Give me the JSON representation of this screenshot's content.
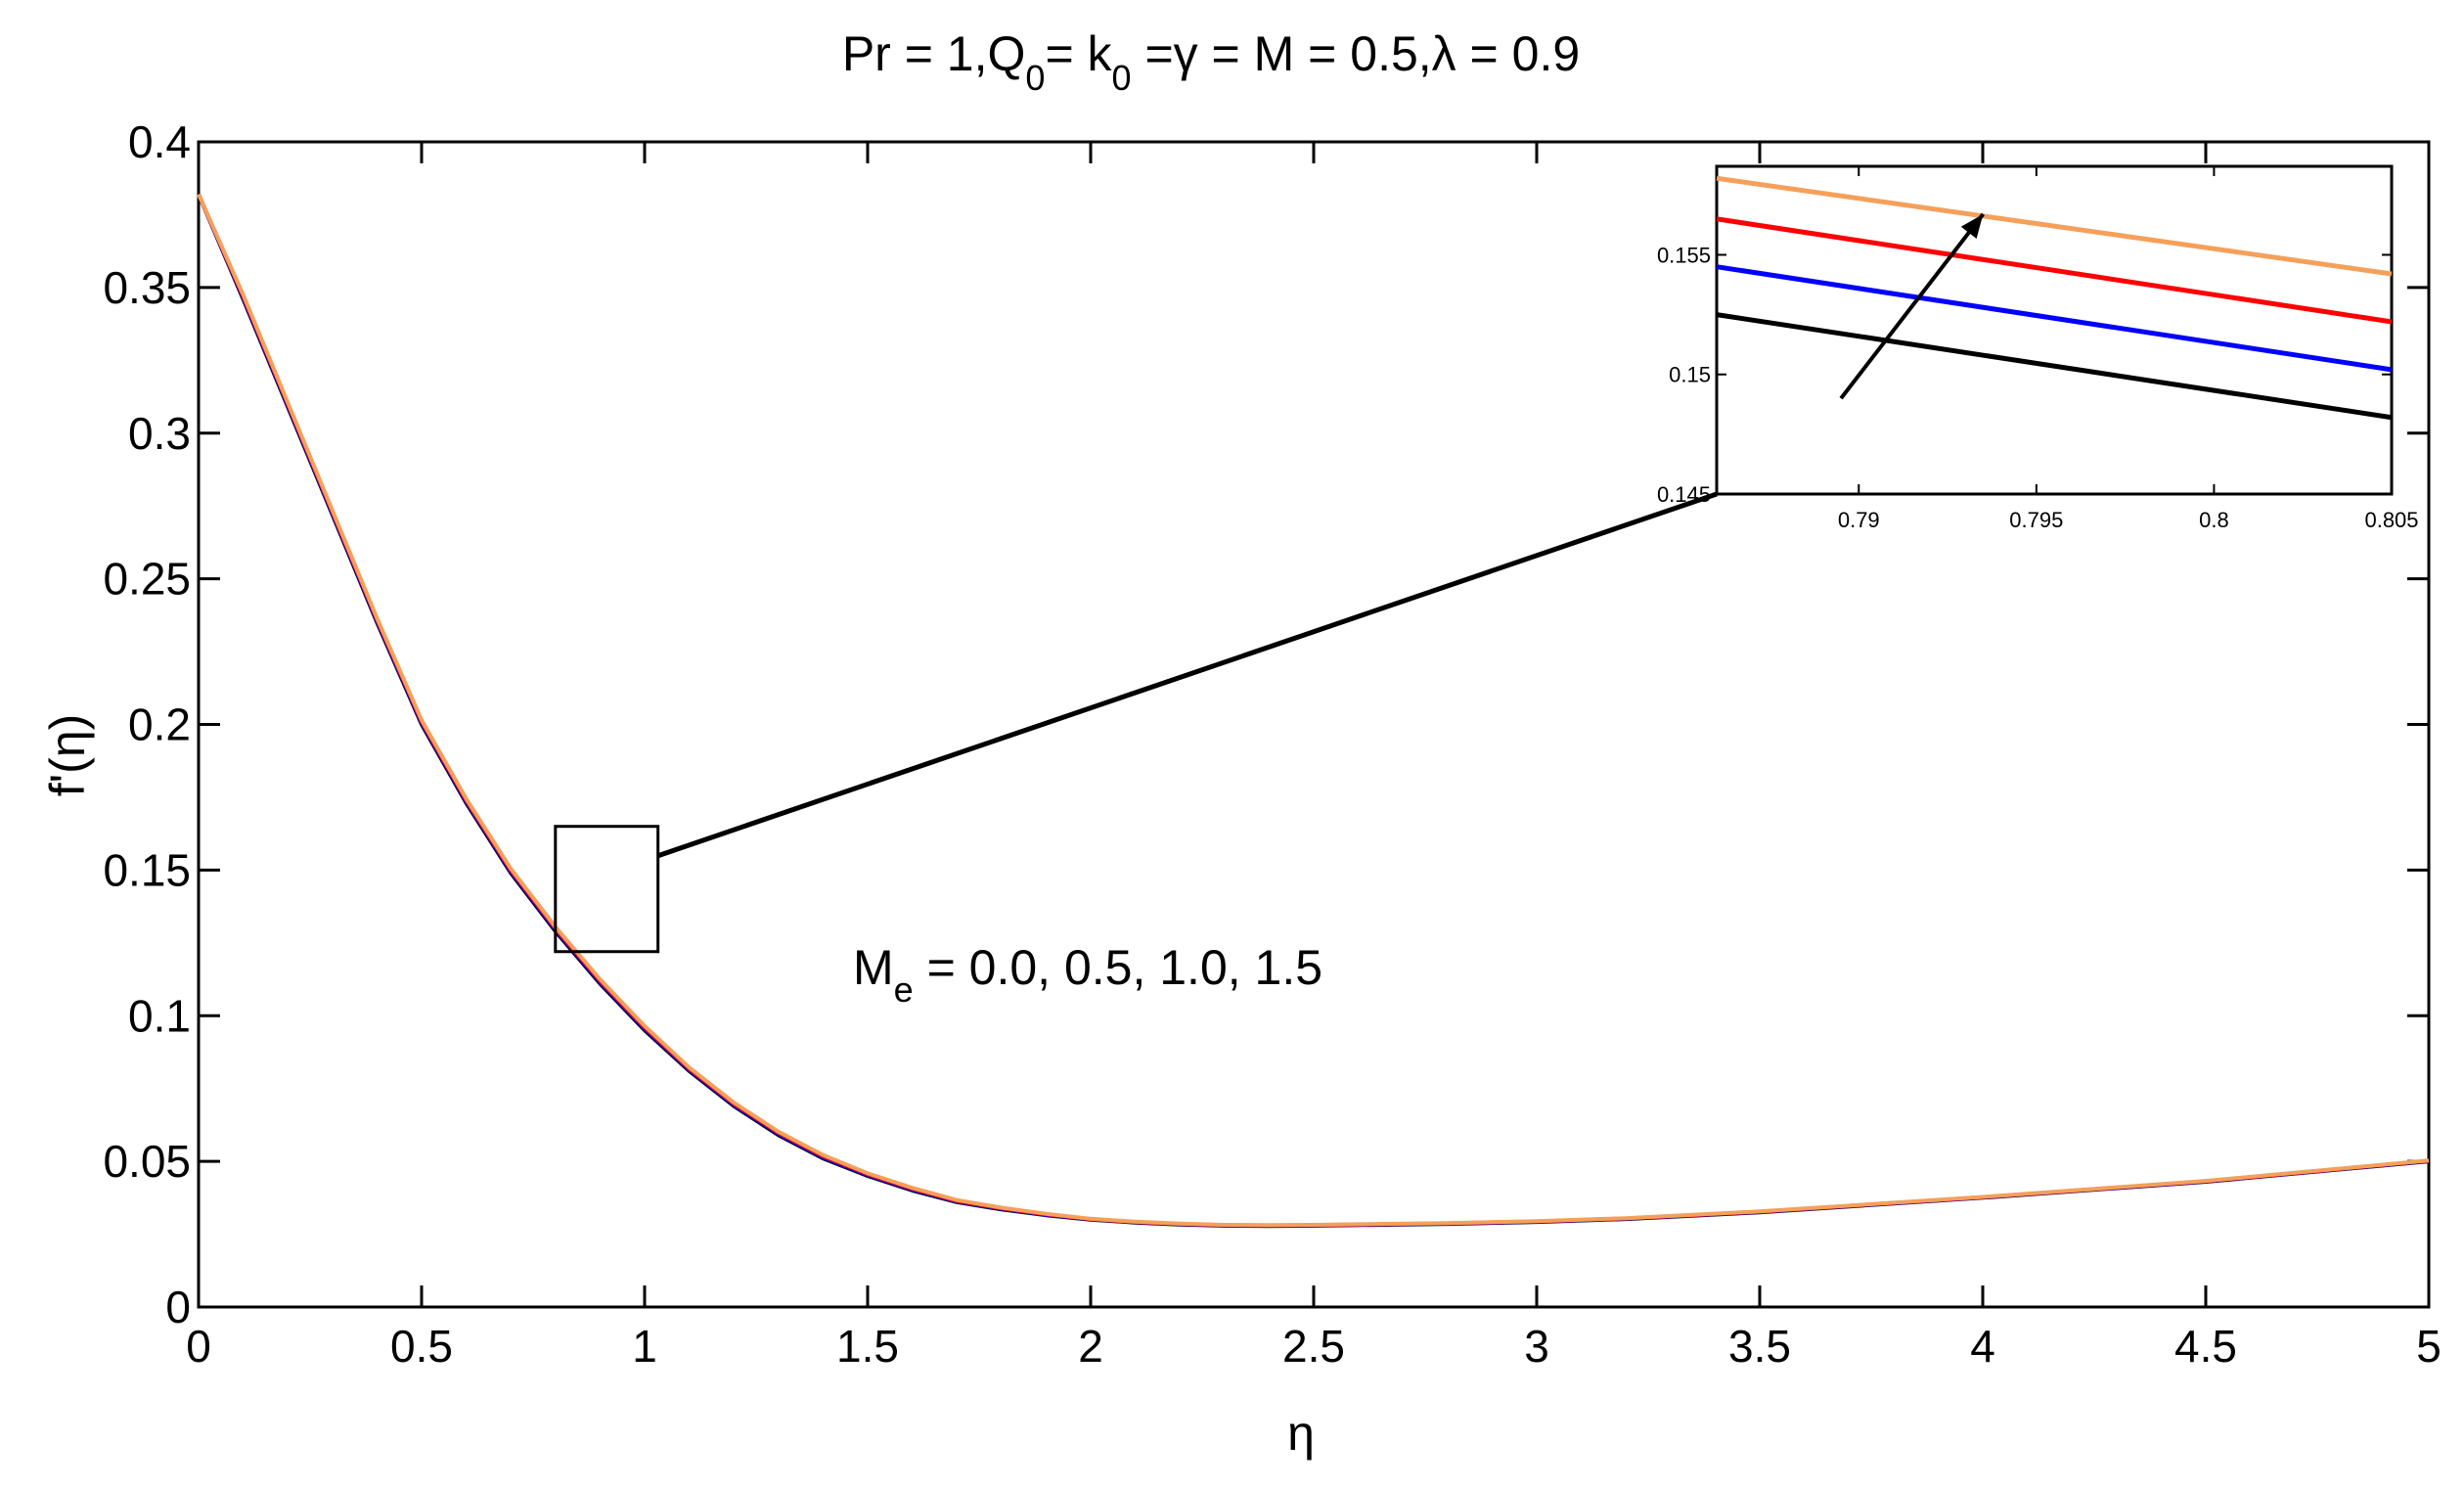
{
  "chart_data": {
    "type": "line",
    "title_parts": [
      "Pr = 1,Q",
      "0",
      "= k",
      "0",
      " =γ = M = 0.5,λ = 0.9"
    ],
    "xlabel": "η",
    "ylabel": "f'(η)",
    "xlim": [
      0,
      5
    ],
    "ylim": [
      0,
      0.4
    ],
    "x_ticks": [
      "0",
      "0.5",
      "1",
      "1.5",
      "2",
      "2.5",
      "3",
      "3.5",
      "4",
      "4.5",
      "5"
    ],
    "y_ticks": [
      "0",
      "0.05",
      "0.1",
      "0.15",
      "0.2",
      "0.25",
      "0.3",
      "0.35",
      "0.4"
    ],
    "grid": false,
    "annotation": {
      "parts": [
        "M",
        "e",
        " = 0.0, 0.5, 1.0, 1.5"
      ]
    },
    "series": [
      {
        "color": "#000000",
        "x": [
          0,
          0.1,
          0.2,
          0.3,
          0.4,
          0.5,
          0.6,
          0.7,
          0.8,
          0.9,
          1.0,
          1.1,
          1.2,
          1.3,
          1.4,
          1.5,
          1.6,
          1.7,
          1.8,
          1.9,
          2.0,
          2.1,
          2.2,
          2.3,
          2.4,
          2.5,
          2.6,
          2.8,
          3.0,
          3.2,
          3.5,
          4.0,
          4.5,
          5.0
        ],
        "y": [
          0.382,
          0.346,
          0.309,
          0.272,
          0.235,
          0.2,
          0.173,
          0.149,
          0.129,
          0.111,
          0.095,
          0.081,
          0.069,
          0.059,
          0.051,
          0.045,
          0.04,
          0.036,
          0.0335,
          0.0315,
          0.03,
          0.029,
          0.0283,
          0.0279,
          0.0278,
          0.0279,
          0.0281,
          0.0285,
          0.0292,
          0.0302,
          0.0325,
          0.0375,
          0.043,
          0.05
        ]
      },
      {
        "color": "#0000ff",
        "x": [
          0,
          0.1,
          0.2,
          0.3,
          0.4,
          0.5,
          0.6,
          0.7,
          0.8,
          0.9,
          1.0,
          1.1,
          1.2,
          1.3,
          1.4,
          1.5,
          1.6,
          1.7,
          1.8,
          1.9,
          2.0,
          2.1,
          2.2,
          2.3,
          2.4,
          2.5,
          2.6,
          2.8,
          3.0,
          3.2,
          3.5,
          4.0,
          4.5,
          5.0
        ],
        "y": [
          0.382,
          0.3465,
          0.3095,
          0.2725,
          0.2355,
          0.2005,
          0.1735,
          0.1495,
          0.1295,
          0.1115,
          0.0955,
          0.0814,
          0.0694,
          0.0594,
          0.0514,
          0.0453,
          0.0403,
          0.0362,
          0.0337,
          0.0316,
          0.0301,
          0.0291,
          0.0284,
          0.028,
          0.0279,
          0.028,
          0.0282,
          0.0286,
          0.0293,
          0.0303,
          0.0326,
          0.0376,
          0.0431,
          0.0501
        ]
      },
      {
        "color": "#ff0000",
        "x": [
          0,
          0.1,
          0.2,
          0.3,
          0.4,
          0.5,
          0.6,
          0.7,
          0.8,
          0.9,
          1.0,
          1.1,
          1.2,
          1.3,
          1.4,
          1.5,
          1.6,
          1.7,
          1.8,
          1.9,
          2.0,
          2.1,
          2.2,
          2.3,
          2.4,
          2.5,
          2.6,
          2.8,
          3.0,
          3.2,
          3.5,
          4.0,
          4.5,
          5.0
        ],
        "y": [
          0.382,
          0.347,
          0.31,
          0.273,
          0.236,
          0.201,
          0.174,
          0.15,
          0.13,
          0.112,
          0.096,
          0.0818,
          0.0698,
          0.0598,
          0.0518,
          0.0456,
          0.0406,
          0.0364,
          0.0339,
          0.0318,
          0.0302,
          0.0292,
          0.0285,
          0.0281,
          0.028,
          0.0281,
          0.0283,
          0.0287,
          0.0294,
          0.0304,
          0.0327,
          0.0377,
          0.0432,
          0.0502
        ]
      },
      {
        "color": "#f5a05a",
        "x": [
          0,
          0.1,
          0.2,
          0.3,
          0.4,
          0.5,
          0.6,
          0.7,
          0.8,
          0.9,
          1.0,
          1.1,
          1.2,
          1.3,
          1.4,
          1.5,
          1.6,
          1.7,
          1.8,
          1.9,
          2.0,
          2.1,
          2.2,
          2.3,
          2.4,
          2.5,
          2.6,
          2.8,
          3.0,
          3.2,
          3.5,
          4.0,
          4.5,
          5.0
        ],
        "y": [
          0.382,
          0.3475,
          0.3105,
          0.2735,
          0.2365,
          0.2015,
          0.1745,
          0.1505,
          0.1305,
          0.1125,
          0.0965,
          0.0822,
          0.0702,
          0.0602,
          0.0522,
          0.0459,
          0.0409,
          0.0367,
          0.0341,
          0.032,
          0.0303,
          0.0293,
          0.0286,
          0.0282,
          0.0281,
          0.0282,
          0.0284,
          0.0288,
          0.0295,
          0.0305,
          0.0328,
          0.0378,
          0.0433,
          0.0503
        ]
      }
    ],
    "zoom_box": {
      "xlim": [
        0.8,
        1.03
      ],
      "ylim": [
        0.122,
        0.165
      ]
    },
    "inset": {
      "xlim": [
        0.786,
        0.805
      ],
      "ylim": [
        0.145,
        0.1587
      ],
      "x_ticks": [
        "0.79",
        "0.795",
        "0.8",
        "0.805"
      ],
      "y_ticks": [
        "0.145",
        "0.15",
        "0.155"
      ],
      "series": [
        {
          "color": "#000000",
          "x": [
            0.786,
            0.805
          ],
          "y": [
            0.1525,
            0.1482
          ]
        },
        {
          "color": "#0000ff",
          "x": [
            0.786,
            0.805
          ],
          "y": [
            0.1545,
            0.1502
          ]
        },
        {
          "color": "#ff0000",
          "x": [
            0.786,
            0.805
          ],
          "y": [
            0.1565,
            0.1522
          ]
        },
        {
          "color": "#f5a05a",
          "x": [
            0.786,
            0.805
          ],
          "y": [
            0.1582,
            0.1542
          ]
        }
      ],
      "arrow": {
        "from": [
          0.7895,
          0.149
        ],
        "to": [
          0.7935,
          0.1567
        ]
      }
    }
  }
}
